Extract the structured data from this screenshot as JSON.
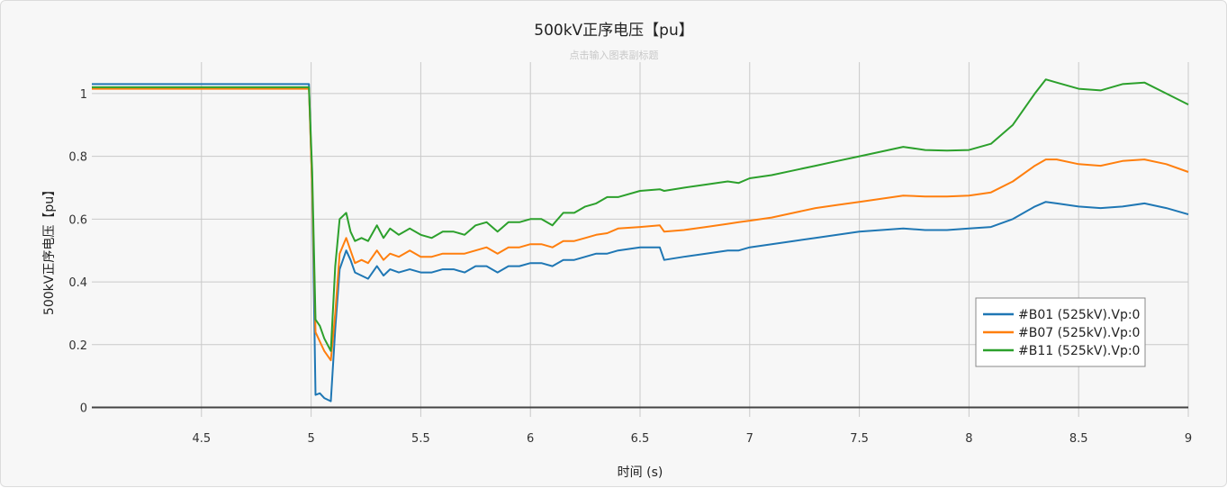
{
  "chart_data": {
    "type": "line",
    "title": "500kV正序电压【pu】",
    "subtitle": "点击输入图表副标题",
    "xlabel": "时间 (s)",
    "ylabel": "500kV正序电压【pu】",
    "xlim": [
      4.0,
      9.0
    ],
    "ylim": [
      -0.03,
      1.1
    ],
    "xticks": [
      4.5,
      5,
      5.5,
      6,
      6.5,
      7,
      7.5,
      8,
      8.5,
      9
    ],
    "yticks": [
      0,
      0.2,
      0.4,
      0.6,
      0.8,
      1
    ],
    "grid": true,
    "legend_position": "bottom-right",
    "series": [
      {
        "name": "#B01 (525kV).Vp:0",
        "color": "#1f77b4",
        "x": [
          4.0,
          4.2,
          4.5,
          4.8,
          4.99,
          5.005,
          5.02,
          5.04,
          5.06,
          5.09,
          5.11,
          5.13,
          5.16,
          5.18,
          5.2,
          5.23,
          5.26,
          5.3,
          5.33,
          5.36,
          5.4,
          5.45,
          5.5,
          5.55,
          5.6,
          5.65,
          5.7,
          5.75,
          5.8,
          5.85,
          5.9,
          5.95,
          6.0,
          6.05,
          6.1,
          6.15,
          6.2,
          6.25,
          6.3,
          6.35,
          6.4,
          6.5,
          6.59,
          6.61,
          6.7,
          6.8,
          6.9,
          6.95,
          7.0,
          7.1,
          7.2,
          7.3,
          7.4,
          7.5,
          7.6,
          7.7,
          7.8,
          7.9,
          8.0,
          8.1,
          8.2,
          8.3,
          8.35,
          8.4,
          8.5,
          8.6,
          8.7,
          8.8,
          8.9,
          9.0
        ],
        "values": [
          1.03,
          1.03,
          1.03,
          1.03,
          1.03,
          0.7,
          0.04,
          0.045,
          0.03,
          0.02,
          0.25,
          0.44,
          0.5,
          0.47,
          0.43,
          0.42,
          0.41,
          0.45,
          0.42,
          0.44,
          0.43,
          0.44,
          0.43,
          0.43,
          0.44,
          0.44,
          0.43,
          0.45,
          0.45,
          0.43,
          0.45,
          0.45,
          0.46,
          0.46,
          0.45,
          0.47,
          0.47,
          0.48,
          0.49,
          0.49,
          0.5,
          0.51,
          0.51,
          0.47,
          0.48,
          0.49,
          0.5,
          0.5,
          0.51,
          0.52,
          0.53,
          0.54,
          0.55,
          0.56,
          0.565,
          0.57,
          0.565,
          0.565,
          0.57,
          0.575,
          0.6,
          0.64,
          0.655,
          0.65,
          0.64,
          0.635,
          0.64,
          0.65,
          0.635,
          0.615
        ]
      },
      {
        "name": "#B07 (525kV).Vp:0",
        "color": "#ff7f0e",
        "x": [
          4.0,
          4.2,
          4.5,
          4.8,
          4.99,
          5.005,
          5.02,
          5.04,
          5.06,
          5.09,
          5.11,
          5.13,
          5.16,
          5.18,
          5.2,
          5.23,
          5.26,
          5.3,
          5.33,
          5.36,
          5.4,
          5.45,
          5.5,
          5.55,
          5.6,
          5.65,
          5.7,
          5.75,
          5.8,
          5.85,
          5.9,
          5.95,
          6.0,
          6.05,
          6.1,
          6.15,
          6.2,
          6.25,
          6.3,
          6.35,
          6.4,
          6.5,
          6.59,
          6.61,
          6.7,
          6.8,
          6.9,
          6.95,
          7.0,
          7.1,
          7.2,
          7.3,
          7.4,
          7.5,
          7.6,
          7.7,
          7.8,
          7.9,
          8.0,
          8.1,
          8.2,
          8.3,
          8.35,
          8.4,
          8.5,
          8.6,
          8.7,
          8.8,
          8.9,
          9.0
        ],
        "values": [
          1.015,
          1.015,
          1.015,
          1.015,
          1.015,
          0.7,
          0.24,
          0.21,
          0.18,
          0.15,
          0.3,
          0.49,
          0.54,
          0.5,
          0.46,
          0.47,
          0.46,
          0.5,
          0.47,
          0.49,
          0.48,
          0.5,
          0.48,
          0.48,
          0.49,
          0.49,
          0.49,
          0.5,
          0.51,
          0.49,
          0.51,
          0.51,
          0.52,
          0.52,
          0.51,
          0.53,
          0.53,
          0.54,
          0.55,
          0.555,
          0.57,
          0.575,
          0.58,
          0.56,
          0.565,
          0.575,
          0.585,
          0.59,
          0.595,
          0.605,
          0.62,
          0.635,
          0.645,
          0.655,
          0.665,
          0.675,
          0.672,
          0.672,
          0.675,
          0.685,
          0.72,
          0.77,
          0.79,
          0.79,
          0.775,
          0.77,
          0.785,
          0.79,
          0.775,
          0.75
        ]
      },
      {
        "name": "#B11 (525kV).Vp:0",
        "color": "#2ca02c",
        "x": [
          4.0,
          4.2,
          4.5,
          4.8,
          4.99,
          5.005,
          5.02,
          5.04,
          5.06,
          5.09,
          5.11,
          5.13,
          5.16,
          5.18,
          5.2,
          5.23,
          5.26,
          5.3,
          5.33,
          5.36,
          5.4,
          5.45,
          5.5,
          5.55,
          5.6,
          5.65,
          5.7,
          5.75,
          5.8,
          5.85,
          5.9,
          5.95,
          6.0,
          6.05,
          6.1,
          6.15,
          6.2,
          6.25,
          6.3,
          6.35,
          6.4,
          6.5,
          6.59,
          6.61,
          6.7,
          6.8,
          6.9,
          6.95,
          7.0,
          7.1,
          7.2,
          7.3,
          7.4,
          7.5,
          7.6,
          7.7,
          7.8,
          7.9,
          8.0,
          8.1,
          8.2,
          8.3,
          8.35,
          8.4,
          8.5,
          8.6,
          8.7,
          8.8,
          8.9,
          9.0
        ],
        "values": [
          1.02,
          1.02,
          1.02,
          1.02,
          1.02,
          0.75,
          0.28,
          0.26,
          0.22,
          0.18,
          0.45,
          0.6,
          0.62,
          0.56,
          0.53,
          0.54,
          0.53,
          0.58,
          0.54,
          0.57,
          0.55,
          0.57,
          0.55,
          0.54,
          0.56,
          0.56,
          0.55,
          0.58,
          0.59,
          0.56,
          0.59,
          0.59,
          0.6,
          0.6,
          0.58,
          0.62,
          0.62,
          0.64,
          0.65,
          0.67,
          0.67,
          0.69,
          0.695,
          0.69,
          0.7,
          0.71,
          0.72,
          0.715,
          0.73,
          0.74,
          0.755,
          0.77,
          0.785,
          0.8,
          0.815,
          0.83,
          0.82,
          0.818,
          0.82,
          0.84,
          0.9,
          1.0,
          1.045,
          1.035,
          1.015,
          1.01,
          1.03,
          1.035,
          1.0,
          0.965
        ]
      }
    ]
  }
}
